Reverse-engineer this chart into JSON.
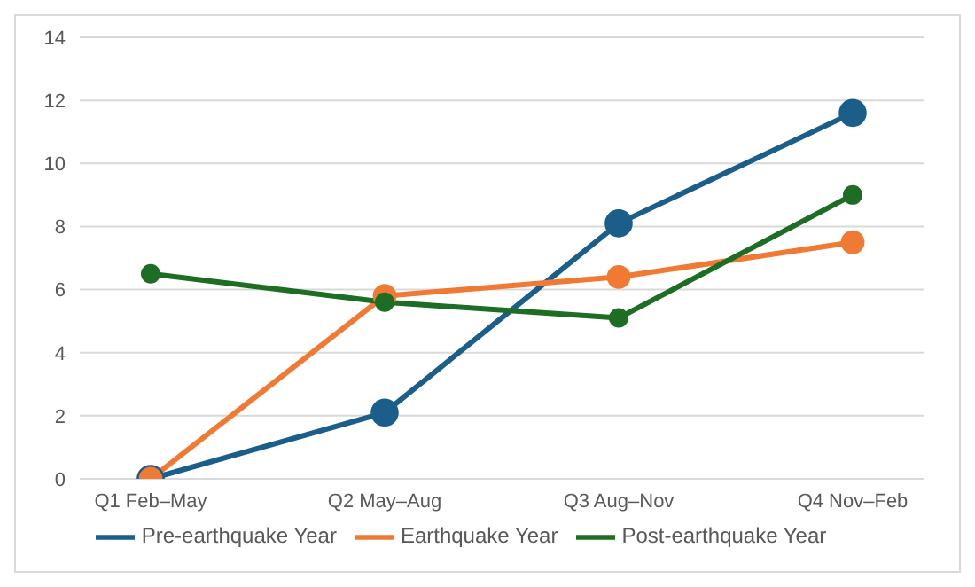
{
  "chart_data": {
    "type": "line",
    "categories": [
      "Q1 Feb–May",
      "Q2 May–Aug",
      "Q3 Aug–Nov",
      "Q4 Nov–Feb"
    ],
    "series": [
      {
        "name": "Pre-earthquake Year",
        "color": "#1b5e8a",
        "values": [
          0,
          2.1,
          8.1,
          11.6
        ]
      },
      {
        "name": "Earthquake Year",
        "color": "#f07a34",
        "values": [
          0,
          5.8,
          6.4,
          7.5
        ]
      },
      {
        "name": "Post-earthquake Year",
        "color": "#1d6e24",
        "values": [
          6.5,
          5.6,
          5.1,
          9.0
        ]
      }
    ],
    "ylim": [
      0,
      14
    ],
    "yticks": [
      0,
      2,
      4,
      6,
      8,
      10,
      12,
      14
    ],
    "grid": "y",
    "legend": "bottom",
    "marker": "circle",
    "line_style": "solid"
  }
}
